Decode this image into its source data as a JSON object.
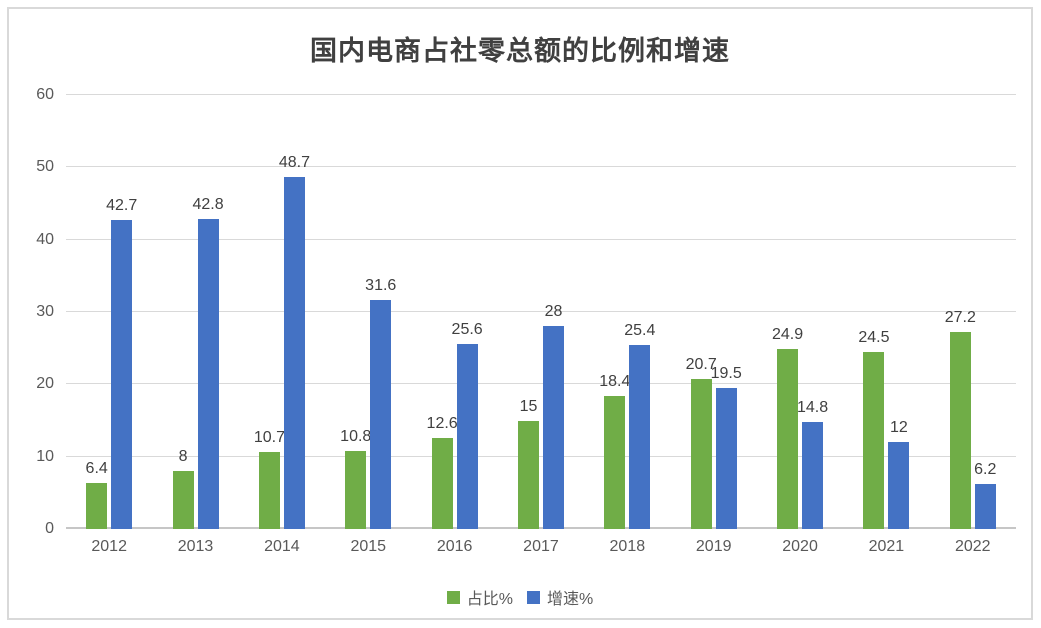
{
  "chart_data": {
    "type": "bar",
    "title": "国内电商占社零总额的比例和增速",
    "categories": [
      "2012",
      "2013",
      "2014",
      "2015",
      "2016",
      "2017",
      "2018",
      "2019",
      "2020",
      "2021",
      "2022"
    ],
    "series": [
      {
        "name": "占比%",
        "key": "share",
        "color": "#70AD47",
        "values": [
          6.4,
          8,
          10.7,
          10.8,
          12.6,
          15,
          18.4,
          20.7,
          24.9,
          24.5,
          27.2
        ],
        "labels": [
          "6.4",
          "8",
          "10.7",
          "10.8",
          "12.6",
          "15",
          "18.4",
          "20.7",
          "24.9",
          "24.5",
          "27.2"
        ]
      },
      {
        "name": "增速%",
        "key": "growth",
        "color": "#4472C4",
        "values": [
          42.7,
          42.8,
          48.7,
          31.6,
          25.6,
          28,
          25.4,
          19.5,
          14.8,
          12,
          6.2
        ],
        "labels": [
          "42.7",
          "42.8",
          "48.7",
          "31.6",
          "25.6",
          "28",
          "25.4",
          "19.5",
          "14.8",
          "12",
          "6.2"
        ]
      }
    ],
    "xlabel": "",
    "ylabel": "",
    "ylim": [
      0,
      60
    ],
    "yticks": [
      0,
      10,
      20,
      30,
      40,
      50,
      60
    ],
    "grid": true,
    "legend_position": "bottom",
    "data_labels": true
  },
  "colors": {
    "share_green": "#70AD47",
    "growth_blue": "#4472C4",
    "gridline": "#D9D9D9",
    "axis_line": "#C6C6C6",
    "title_text": "#404040",
    "data_label_text": "#404040",
    "tick_text": "#595959",
    "frame_border": "#D9D9D9"
  }
}
